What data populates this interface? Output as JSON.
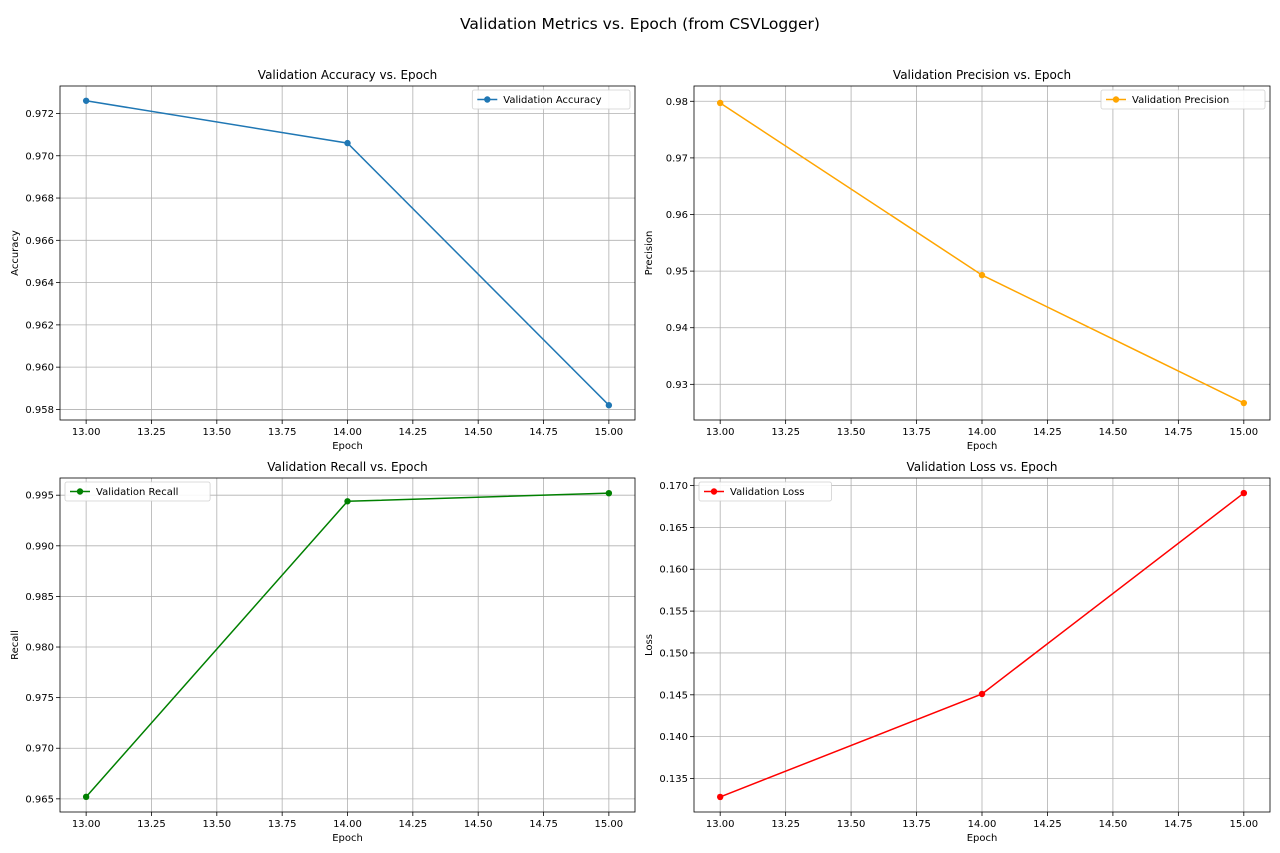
{
  "figure": {
    "suptitle": "Validation Metrics vs. Epoch (from CSVLogger)"
  },
  "chart_data": [
    {
      "type": "line",
      "title": "Validation Accuracy vs. Epoch",
      "xlabel": "Epoch",
      "ylabel": "Accuracy",
      "x": [
        13.0,
        14.0,
        15.0
      ],
      "xlim": [
        12.9,
        15.1
      ],
      "ylim": [
        0.9575,
        0.9733
      ],
      "xticks": [
        "13.00",
        "13.25",
        "13.50",
        "13.75",
        "14.00",
        "14.25",
        "14.50",
        "14.75",
        "15.00"
      ],
      "xtick_values": [
        13.0,
        13.25,
        13.5,
        13.75,
        14.0,
        14.25,
        14.5,
        14.75,
        15.0
      ],
      "yticks": [
        "0.958",
        "0.960",
        "0.962",
        "0.964",
        "0.966",
        "0.968",
        "0.970",
        "0.972"
      ],
      "ytick_values": [
        0.958,
        0.96,
        0.962,
        0.964,
        0.966,
        0.968,
        0.97,
        0.972
      ],
      "grid": true,
      "legend": "top-right",
      "series": [
        {
          "name": "Validation Accuracy",
          "color": "#1f77b4",
          "values": [
            0.9726,
            0.9706,
            0.9582
          ]
        }
      ]
    },
    {
      "type": "line",
      "title": "Validation Precision vs. Epoch",
      "xlabel": "Epoch",
      "ylabel": "Precision",
      "x": [
        13.0,
        14.0,
        15.0
      ],
      "xlim": [
        12.9,
        15.1
      ],
      "ylim": [
        0.9237,
        0.9827
      ],
      "xticks": [
        "13.00",
        "13.25",
        "13.50",
        "13.75",
        "14.00",
        "14.25",
        "14.50",
        "14.75",
        "15.00"
      ],
      "xtick_values": [
        13.0,
        13.25,
        13.5,
        13.75,
        14.0,
        14.25,
        14.5,
        14.75,
        15.0
      ],
      "yticks": [
        "0.93",
        "0.94",
        "0.95",
        "0.96",
        "0.97",
        "0.98"
      ],
      "ytick_values": [
        0.93,
        0.94,
        0.95,
        0.96,
        0.97,
        0.98
      ],
      "grid": true,
      "legend": "top-right",
      "series": [
        {
          "name": "Validation Precision",
          "color": "#ffa500",
          "values": [
            0.9797,
            0.9493,
            0.9267
          ]
        }
      ]
    },
    {
      "type": "line",
      "title": "Validation Recall vs. Epoch",
      "xlabel": "Epoch",
      "ylabel": "Recall",
      "x": [
        13.0,
        14.0,
        15.0
      ],
      "xlim": [
        12.9,
        15.1
      ],
      "ylim": [
        0.9637,
        0.9967
      ],
      "xticks": [
        "13.00",
        "13.25",
        "13.50",
        "13.75",
        "14.00",
        "14.25",
        "14.50",
        "14.75",
        "15.00"
      ],
      "xtick_values": [
        13.0,
        13.25,
        13.5,
        13.75,
        14.0,
        14.25,
        14.5,
        14.75,
        15.0
      ],
      "yticks": [
        "0.965",
        "0.970",
        "0.975",
        "0.980",
        "0.985",
        "0.990",
        "0.995"
      ],
      "ytick_values": [
        0.965,
        0.97,
        0.975,
        0.98,
        0.985,
        0.99,
        0.995
      ],
      "grid": true,
      "legend": "top-left",
      "series": [
        {
          "name": "Validation Recall",
          "color": "#008000",
          "values": [
            0.9652,
            0.9944,
            0.9952
          ]
        }
      ]
    },
    {
      "type": "line",
      "title": "Validation Loss vs. Epoch",
      "xlabel": "Epoch",
      "ylabel": "Loss",
      "x": [
        13.0,
        14.0,
        15.0
      ],
      "xlim": [
        12.9,
        15.1
      ],
      "ylim": [
        0.131,
        0.1709
      ],
      "xticks": [
        "13.00",
        "13.25",
        "13.50",
        "13.75",
        "14.00",
        "14.25",
        "14.50",
        "14.75",
        "15.00"
      ],
      "xtick_values": [
        13.0,
        13.25,
        13.5,
        13.75,
        14.0,
        14.25,
        14.5,
        14.75,
        15.0
      ],
      "yticks": [
        "0.135",
        "0.140",
        "0.145",
        "0.150",
        "0.155",
        "0.160",
        "0.165",
        "0.170"
      ],
      "ytick_values": [
        0.135,
        0.14,
        0.145,
        0.15,
        0.155,
        0.16,
        0.165,
        0.17
      ],
      "grid": true,
      "legend": "top-left",
      "series": [
        {
          "name": "Validation Loss",
          "color": "#ff0000",
          "values": [
            0.1328,
            0.1451,
            0.1691
          ]
        }
      ]
    }
  ]
}
